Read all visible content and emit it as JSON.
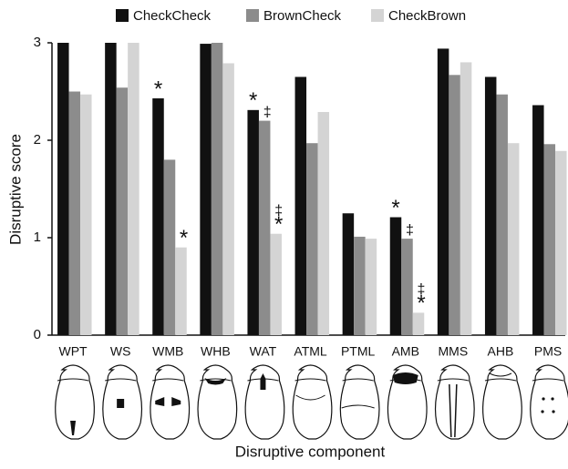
{
  "chart_data": {
    "type": "bar",
    "x_label": "Disruptive component",
    "y_label": "Disruptive score",
    "categories": [
      "WPT",
      "WS",
      "WMB",
      "WHB",
      "WAT",
      "ATML",
      "PTML",
      "AMB",
      "MMS",
      "AHB",
      "PMS"
    ],
    "series": [
      {
        "name": "CheckCheck",
        "color": "#111111",
        "values": [
          3,
          3,
          2.43,
          2.99,
          2.31,
          2.65,
          1.25,
          1.21,
          2.94,
          2.65,
          2.36
        ],
        "markers": [
          null,
          null,
          [
            "*"
          ],
          null,
          [
            "*"
          ],
          null,
          null,
          [
            "*"
          ],
          null,
          null,
          null
        ]
      },
      {
        "name": "BrownCheck",
        "color": "#8c8c8c",
        "values": [
          2.5,
          2.54,
          1.8,
          3,
          2.2,
          1.97,
          1.01,
          0.99,
          2.67,
          2.47,
          1.96
        ],
        "markers": [
          null,
          null,
          null,
          null,
          [
            "‡"
          ],
          null,
          null,
          [
            "‡"
          ],
          null,
          null,
          null
        ]
      },
      {
        "name": "CheckBrown",
        "color": "#d4d4d4",
        "values": [
          2.47,
          3,
          0.9,
          2.79,
          1.04,
          2.29,
          0.99,
          0.23,
          2.8,
          1.97,
          1.89
        ],
        "markers": [
          null,
          null,
          [
            "*"
          ],
          null,
          [
            "‡",
            "*"
          ],
          null,
          null,
          [
            "‡",
            "*"
          ],
          null,
          null,
          null
        ]
      }
    ],
    "ylim": [
      0,
      3
    ],
    "yticks": [
      0,
      1,
      2,
      3
    ],
    "grid": false
  }
}
